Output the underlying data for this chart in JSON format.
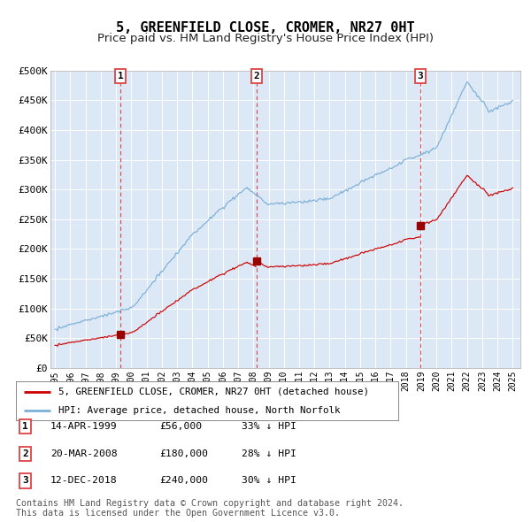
{
  "title": "5, GREENFIELD CLOSE, CROMER, NR27 0HT",
  "subtitle": "Price paid vs. HM Land Registry's House Price Index (HPI)",
  "title_fontsize": 11,
  "subtitle_fontsize": 9.5,
  "background_color": "#ffffff",
  "plot_bg_color": "#dce8f5",
  "grid_color": "#ffffff",
  "ylim": [
    0,
    500000
  ],
  "yticks": [
    0,
    50000,
    100000,
    150000,
    200000,
    250000,
    300000,
    350000,
    400000,
    450000,
    500000
  ],
  "ytick_labels": [
    "£0",
    "£50K",
    "£100K",
    "£150K",
    "£200K",
    "£250K",
    "£300K",
    "£350K",
    "£400K",
    "£450K",
    "£500K"
  ],
  "hpi_color": "#7ab0d8",
  "price_color": "#cc0000",
  "sale_marker_color": "#990000",
  "vline_color": "#dd4444",
  "transactions": [
    {
      "label": "1",
      "date_str": "14-APR-1999",
      "year": 1999.28,
      "price": 56000,
      "hpi_pct": "33% ↓ HPI"
    },
    {
      "label": "2",
      "date_str": "20-MAR-2008",
      "year": 2008.22,
      "price": 180000,
      "hpi_pct": "28% ↓ HPI"
    },
    {
      "label": "3",
      "date_str": "12-DEC-2018",
      "year": 2018.94,
      "price": 240000,
      "hpi_pct": "30% ↓ HPI"
    }
  ],
  "legend_label_price": "5, GREENFIELD CLOSE, CROMER, NR27 0HT (detached house)",
  "legend_label_hpi": "HPI: Average price, detached house, North Norfolk",
  "footer": "Contains HM Land Registry data © Crown copyright and database right 2024.\nThis data is licensed under the Open Government Licence v3.0.",
  "footer_fontsize": 7.2
}
